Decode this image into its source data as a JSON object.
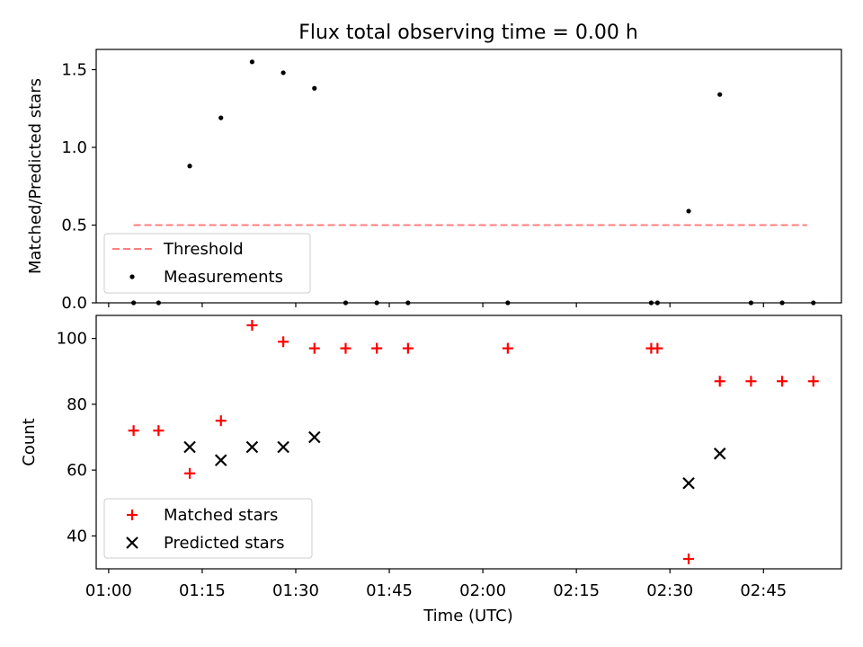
{
  "chart_data": {
    "type": "scatter",
    "title": "Flux total observing time = 0.00 h",
    "xlabel": "Time (UTC)",
    "x_tick_labels": [
      "01:00",
      "01:15",
      "01:30",
      "01:45",
      "02:00",
      "02:15",
      "02:30",
      "02:45"
    ],
    "x_tick_minutes": [
      0,
      15,
      30,
      45,
      60,
      75,
      90,
      105
    ],
    "x_range_minutes": [
      -2,
      117.5
    ],
    "panels": [
      {
        "id": "ratio",
        "ylabel": "Matched/Predicted stars",
        "ylim": [
          0,
          1.63
        ],
        "yticks": [
          0.0,
          0.5,
          1.0,
          1.5
        ],
        "ytick_labels": [
          "0.0",
          "0.5",
          "1.0",
          "1.5"
        ],
        "legend_position": "lower-left",
        "series": [
          {
            "name": "Threshold",
            "kind": "dashed-line",
            "color": "#ff7f7f",
            "x": [
              "01:04",
              "02:52"
            ],
            "y": [
              0.5,
              0.5
            ]
          },
          {
            "name": "Measurements",
            "kind": "dot",
            "color": "#000000",
            "x": [
              "01:04",
              "01:08",
              "01:13",
              "01:18",
              "01:23",
              "01:28",
              "01:33",
              "01:38",
              "01:43",
              "01:48",
              "02:04",
              "02:27",
              "02:28",
              "02:33",
              "02:38",
              "02:43",
              "02:48",
              "02:53"
            ],
            "y": [
              0.0,
              0.0,
              0.88,
              1.19,
              1.55,
              1.48,
              1.38,
              0.0,
              0.0,
              0.0,
              0.0,
              0.0,
              0.0,
              0.59,
              1.34,
              0.0,
              0.0,
              0.0
            ]
          }
        ]
      },
      {
        "id": "count",
        "ylabel": "Count",
        "ylim": [
          30,
          107
        ],
        "yticks": [
          40,
          60,
          80,
          100
        ],
        "ytick_labels": [
          "40",
          "60",
          "80",
          "100"
        ],
        "legend_position": "lower-left",
        "series": [
          {
            "name": "Matched stars",
            "kind": "plus",
            "color": "#ff0000",
            "x": [
              "01:04",
              "01:08",
              "01:13",
              "01:18",
              "01:23",
              "01:28",
              "01:33",
              "01:38",
              "01:43",
              "01:48",
              "02:04",
              "02:27",
              "02:28",
              "02:33",
              "02:38",
              "02:43",
              "02:48",
              "02:53"
            ],
            "y": [
              72,
              72,
              59,
              75,
              104,
              99,
              97,
              97,
              97,
              97,
              97,
              97,
              97,
              33,
              87,
              87,
              87,
              87
            ]
          },
          {
            "name": "Predicted stars",
            "kind": "cross",
            "color": "#000000",
            "x": [
              "01:13",
              "01:18",
              "01:23",
              "01:28",
              "01:33",
              "02:33",
              "02:38"
            ],
            "y": [
              67,
              63,
              67,
              67,
              70,
              56,
              65
            ]
          }
        ]
      }
    ]
  }
}
